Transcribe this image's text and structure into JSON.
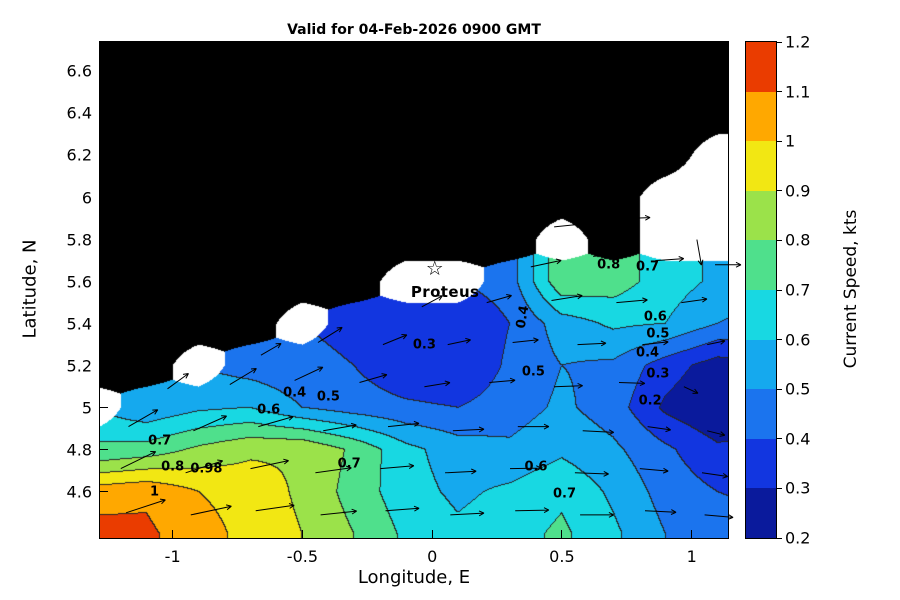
{
  "chart_data": {
    "type": "heatmap",
    "title": "Valid for 04-Feb-2026 0900 GMT",
    "xlabel": "Longitude, E",
    "ylabel": "Latitude, N",
    "colorbar_label": "Current Speed, kts",
    "xlim": [
      -1.28,
      1.14
    ],
    "ylim": [
      4.38,
      6.74
    ],
    "x_ticks": {
      "values": [
        -1,
        -0.5,
        0,
        0.5,
        1
      ],
      "labels": [
        "-1",
        "-0.5",
        "0",
        "0.5",
        "1"
      ]
    },
    "y_ticks": {
      "values": [
        4.6,
        4.8,
        5,
        5.2,
        5.4,
        5.6,
        5.8,
        6,
        6.2,
        6.4,
        6.6
      ],
      "labels": [
        "4.6",
        "4.8",
        "5",
        "5.2",
        "5.4",
        "5.6",
        "5.8",
        "6",
        "6.2",
        "6.4",
        "6.6"
      ]
    },
    "colorbar_ticks": {
      "values": [
        0.2,
        0.3,
        0.4,
        0.5,
        0.6,
        0.7,
        0.8,
        0.9,
        1,
        1.1,
        1.2
      ],
      "labels": [
        "0.2",
        "0.3",
        "0.4",
        "0.5",
        "0.6",
        "0.7",
        "0.8",
        "0.9",
        "1",
        "1.1",
        "1.2"
      ]
    },
    "band_colors": [
      "#0a1a9c",
      "#1236e0",
      "#1b74ee",
      "#15a9ee",
      "#18d8e2",
      "#4fe08c",
      "#9be24a",
      "#f2e713",
      "#ffa800",
      "#ea3c00"
    ],
    "contour_levels": [
      0.2,
      0.3,
      0.4,
      0.5,
      0.6,
      0.7,
      0.8,
      0.9,
      1.0,
      1.1,
      1.2
    ],
    "contour_line_color": "#262626",
    "land_color": "#000000",
    "nodata_color": "#ffffff",
    "grid": {
      "x_start": -1.3,
      "x_step": 0.2,
      "y_start": 4.4,
      "y_step": 0.2,
      "land_code": "L",
      "nodata_code": "W",
      "speed_kts_rows_south_to_north": [
        [
          1.14,
          1.12,
          1.04,
          0.97,
          0.9,
          0.8,
          0.68,
          0.62,
          0.66,
          0.72,
          0.62,
          0.5,
          0.44,
          0.42
        ],
        [
          1.05,
          1.08,
          1.0,
          0.96,
          0.88,
          0.76,
          0.64,
          0.58,
          0.62,
          0.68,
          0.58,
          0.46,
          0.4,
          0.38
        ],
        [
          0.7,
          0.74,
          0.82,
          0.88,
          0.89,
          0.78,
          0.63,
          0.55,
          0.52,
          0.58,
          0.52,
          0.42,
          0.32,
          0.32
        ],
        [
          "W",
          0.52,
          0.58,
          0.6,
          0.5,
          0.45,
          0.42,
          0.4,
          0.45,
          0.52,
          0.45,
          0.28,
          0.2,
          0.25
        ],
        [
          "L",
          "L",
          "W",
          0.45,
          0.42,
          0.4,
          0.32,
          0.3,
          0.42,
          0.5,
          0.48,
          0.35,
          0.25,
          0.3
        ],
        [
          "L",
          "L",
          "L",
          "L",
          "W",
          0.38,
          0.33,
          0.3,
          0.4,
          0.55,
          0.62,
          0.6,
          0.5,
          0.45
        ],
        [
          "L",
          "L",
          "L",
          "L",
          "L",
          "L",
          "W",
          "W",
          0.45,
          0.78,
          0.75,
          0.65,
          0.58,
          0.55
        ],
        [
          "L",
          "L",
          "L",
          "L",
          "L",
          "L",
          "L",
          "L",
          "L",
          "W",
          "L",
          "W",
          "W",
          "W"
        ],
        [
          "L",
          "L",
          "L",
          "L",
          "L",
          "L",
          "L",
          "L",
          "L",
          "L",
          "L",
          "W",
          "W",
          "W"
        ],
        [
          "L",
          "L",
          "L",
          "L",
          "L",
          "L",
          "L",
          "L",
          "L",
          "L",
          "L",
          "L",
          "W",
          "W"
        ],
        [
          "L",
          "L",
          "L",
          "L",
          "L",
          "L",
          "L",
          "L",
          "L",
          "L",
          "L",
          "L",
          "L",
          "L"
        ],
        [
          "L",
          "L",
          "L",
          "L",
          "L",
          "L",
          "L",
          "L",
          "L",
          "L",
          "L",
          "L",
          "L",
          "L"
        ],
        [
          "L",
          "L",
          "L",
          "L",
          "L",
          "L",
          "L",
          "L",
          "L",
          "L",
          "L",
          "L",
          "L",
          "L"
        ]
      ]
    },
    "contour_labels": [
      {
        "t": "0.7",
        "x": -1.05,
        "y": 4.84
      },
      {
        "t": "0.8",
        "x": -1.0,
        "y": 4.72
      },
      {
        "t": "0.98",
        "x": -0.87,
        "y": 4.71
      },
      {
        "t": "1",
        "x": -1.07,
        "y": 4.6
      },
      {
        "t": "0.6",
        "x": -0.63,
        "y": 4.99
      },
      {
        "t": "0.4",
        "x": -0.53,
        "y": 5.07
      },
      {
        "t": "0.5",
        "x": -0.4,
        "y": 5.05
      },
      {
        "t": "0.7",
        "x": -0.32,
        "y": 4.73
      },
      {
        "t": "0.3",
        "x": -0.03,
        "y": 5.3
      },
      {
        "t": "0.4",
        "x": 0.35,
        "y": 5.43,
        "r": -80
      },
      {
        "t": "0.5",
        "x": 0.39,
        "y": 5.17
      },
      {
        "t": "0.6",
        "x": 0.4,
        "y": 4.72
      },
      {
        "t": "0.7",
        "x": 0.51,
        "y": 4.59
      },
      {
        "t": "0.8",
        "x": 0.68,
        "y": 5.68
      },
      {
        "t": "0.7",
        "x": 0.83,
        "y": 5.67
      },
      {
        "t": "0.6",
        "x": 0.86,
        "y": 5.43
      },
      {
        "t": "0.5",
        "x": 0.87,
        "y": 5.35
      },
      {
        "t": "0.4",
        "x": 0.83,
        "y": 5.26
      },
      {
        "t": "0.3",
        "x": 0.87,
        "y": 5.16
      },
      {
        "t": "0.2",
        "x": 0.84,
        "y": 5.03
      }
    ],
    "station": {
      "name": "Proteus",
      "x": 0.01,
      "y": 5.66,
      "label_x": 0.05,
      "label_y": 5.55,
      "marker_glyph": "☆"
    },
    "arrows": [
      [
        -1.18,
        4.5,
        18,
        0.16
      ],
      [
        -0.93,
        4.49,
        12,
        0.16
      ],
      [
        -0.68,
        4.51,
        8,
        0.15
      ],
      [
        -0.43,
        4.49,
        6,
        0.14
      ],
      [
        -0.18,
        4.51,
        4,
        0.13
      ],
      [
        0.07,
        4.49,
        3,
        0.13
      ],
      [
        0.32,
        4.51,
        1,
        0.13
      ],
      [
        0.57,
        4.49,
        0,
        0.13
      ],
      [
        0.82,
        4.51,
        -3,
        0.12
      ],
      [
        1.05,
        4.49,
        -5,
        0.11
      ],
      [
        -1.2,
        4.71,
        26,
        0.15
      ],
      [
        -0.95,
        4.69,
        18,
        0.15
      ],
      [
        -0.7,
        4.71,
        12,
        0.15
      ],
      [
        -0.45,
        4.69,
        8,
        0.14
      ],
      [
        -0.2,
        4.71,
        5,
        0.13
      ],
      [
        0.05,
        4.69,
        3,
        0.12
      ],
      [
        0.3,
        4.71,
        1,
        0.12
      ],
      [
        0.55,
        4.69,
        -2,
        0.13
      ],
      [
        0.8,
        4.71,
        -5,
        0.11
      ],
      [
        1.04,
        4.69,
        -8,
        0.1
      ],
      [
        -1.17,
        4.91,
        30,
        0.13
      ],
      [
        -0.92,
        4.89,
        24,
        0.14
      ],
      [
        -0.67,
        4.91,
        16,
        0.14
      ],
      [
        -0.42,
        4.89,
        10,
        0.13
      ],
      [
        -0.17,
        4.91,
        6,
        0.12
      ],
      [
        0.08,
        4.89,
        3,
        0.12
      ],
      [
        0.33,
        4.91,
        0,
        0.12
      ],
      [
        0.58,
        4.89,
        -3,
        0.12
      ],
      [
        0.83,
        4.91,
        -8,
        0.09
      ],
      [
        1.06,
        4.89,
        -14,
        0.07
      ],
      [
        -1.02,
        5.09,
        36,
        0.1
      ],
      [
        -0.78,
        5.11,
        31,
        0.12
      ],
      [
        -0.53,
        5.13,
        25,
        0.12
      ],
      [
        -0.28,
        5.12,
        16,
        0.11
      ],
      [
        -0.03,
        5.1,
        9,
        0.1
      ],
      [
        0.22,
        5.12,
        5,
        0.1
      ],
      [
        0.47,
        5.1,
        2,
        0.11
      ],
      [
        0.72,
        5.12,
        -2,
        0.1
      ],
      [
        0.97,
        5.1,
        -25,
        0.06
      ],
      [
        -0.66,
        5.25,
        30,
        0.09
      ],
      [
        -0.44,
        5.31,
        32,
        0.11
      ],
      [
        -0.19,
        5.3,
        22,
        0.1
      ],
      [
        0.06,
        5.3,
        12,
        0.09
      ],
      [
        0.31,
        5.31,
        6,
        0.1
      ],
      [
        0.56,
        5.3,
        3,
        0.11
      ],
      [
        0.81,
        5.3,
        6,
        0.1
      ],
      [
        1.06,
        5.3,
        12,
        0.07
      ],
      [
        -0.04,
        5.48,
        28,
        0.09
      ],
      [
        0.21,
        5.5,
        16,
        0.1
      ],
      [
        0.46,
        5.51,
        9,
        0.12
      ],
      [
        0.71,
        5.5,
        5,
        0.12
      ],
      [
        0.96,
        5.5,
        8,
        0.1
      ],
      [
        0.38,
        5.67,
        12,
        0.12
      ],
      [
        0.62,
        5.72,
        6,
        0.12
      ],
      [
        0.86,
        5.7,
        4,
        0.11
      ],
      [
        1.09,
        5.68,
        0,
        0.1
      ],
      [
        0.47,
        5.86,
        6,
        0.11
      ],
      [
        0.74,
        5.9,
        2,
        0.1
      ],
      [
        1.02,
        5.8,
        -80,
        0.1
      ]
    ]
  }
}
